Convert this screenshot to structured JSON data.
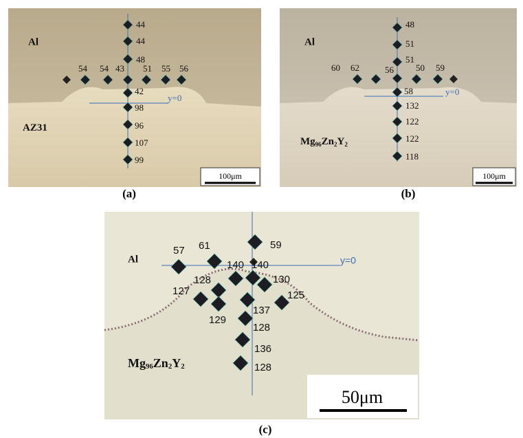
{
  "panels": [
    {
      "caption": "(a)",
      "top_label": "Al",
      "bottom_label": [
        "AZ31"
      ],
      "axis_label": "y=0",
      "scale_bar": "100μm",
      "hardness": [
        44,
        44,
        48,
        54,
        54,
        43,
        51,
        55,
        56,
        42,
        98,
        96,
        107,
        99
      ]
    },
    {
      "caption": "(b)",
      "top_label": "Al",
      "bottom_label": [
        "Mg",
        "96",
        "Zn",
        "2",
        "Y",
        "2"
      ],
      "axis_label": "y=0",
      "scale_bar": "100μm",
      "hardness": [
        48,
        51,
        51,
        60,
        62,
        56,
        50,
        59,
        58,
        132,
        122,
        122,
        118
      ]
    },
    {
      "caption": "(c)",
      "top_label": "Al",
      "bottom_label": [
        "Mg",
        "96",
        "Zn",
        "2",
        "Y",
        "2"
      ],
      "axis_label": "y=0",
      "scale_bar": "50μm",
      "hardness": [
        57,
        61,
        59,
        140,
        140,
        128,
        130,
        127,
        125,
        137,
        129,
        128,
        136,
        128
      ]
    }
  ]
}
